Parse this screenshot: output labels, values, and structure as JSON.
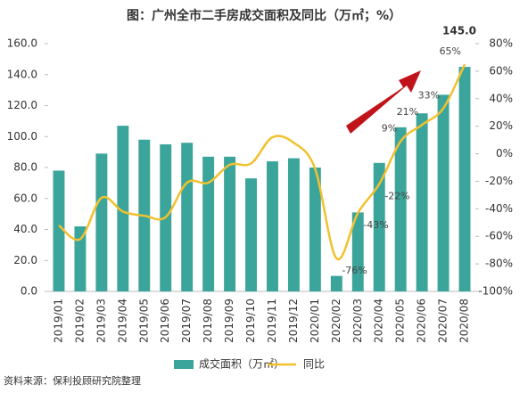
{
  "chart_data": {
    "type": "bar",
    "title": "图：广州全市二手房成交面积及同比（万㎡；%）",
    "categories": [
      "2019/01",
      "2019/02",
      "2019/03",
      "2019/04",
      "2019/05",
      "2019/06",
      "2019/07",
      "2019/08",
      "2019/09",
      "2019/10",
      "2019/11",
      "2019/12",
      "2020/01",
      "2020/02",
      "2020/03",
      "2020/04",
      "2020/05",
      "2020/06",
      "2020/07",
      "2020/08"
    ],
    "series": [
      {
        "name": "成交面积（万㎡）",
        "type": "bar",
        "color": "#3ba59b",
        "values": [
          78,
          42,
          89,
          107,
          98,
          95,
          96,
          87,
          87,
          73,
          84,
          86,
          80,
          10,
          51,
          83,
          106,
          115,
          127,
          145
        ],
        "value_labels": [
          null,
          null,
          null,
          null,
          null,
          null,
          null,
          null,
          null,
          null,
          null,
          null,
          null,
          null,
          null,
          null,
          null,
          null,
          null,
          "145.0"
        ]
      },
      {
        "name": "同比",
        "type": "line",
        "color": "#f2c12e",
        "axis": "y2",
        "values": [
          -52,
          -62,
          -32,
          -42,
          -45,
          -46,
          -21,
          -21,
          -8,
          -7,
          12,
          8,
          -11,
          -76,
          -43,
          -22,
          9,
          21,
          33,
          65
        ],
        "value_labels": [
          null,
          null,
          null,
          null,
          null,
          null,
          null,
          null,
          null,
          null,
          null,
          null,
          null,
          "-76%",
          "-43%",
          "-22%",
          "9%",
          "21%",
          "33%",
          "65%"
        ]
      }
    ],
    "ylim": [
      0,
      160
    ],
    "yticks": [
      {
        "value": 0,
        "label": "0.0"
      },
      {
        "value": 20,
        "label": "20.0"
      },
      {
        "value": 40,
        "label": "40.0"
      },
      {
        "value": 60,
        "label": "60.0"
      },
      {
        "value": 80,
        "label": "80.0"
      },
      {
        "value": 100,
        "label": "100.0"
      },
      {
        "value": 120,
        "label": "120.0"
      },
      {
        "value": 140,
        "label": "140.0"
      },
      {
        "value": 160,
        "label": "160.0"
      }
    ],
    "y2lim": [
      -100,
      80
    ],
    "y2ticks": [
      {
        "value": -100,
        "label": "-100%"
      },
      {
        "value": -80,
        "label": "-80%"
      },
      {
        "value": -60,
        "label": "-60%"
      },
      {
        "value": -40,
        "label": "-40%"
      },
      {
        "value": -20,
        "label": "-20%"
      },
      {
        "value": 0,
        "label": "0%"
      },
      {
        "value": 20,
        "label": "20%"
      },
      {
        "value": 40,
        "label": "40%"
      },
      {
        "value": 60,
        "label": "60%"
      },
      {
        "value": 80,
        "label": "80%"
      }
    ],
    "source": "资料来源：保利投顾研究院整理"
  }
}
